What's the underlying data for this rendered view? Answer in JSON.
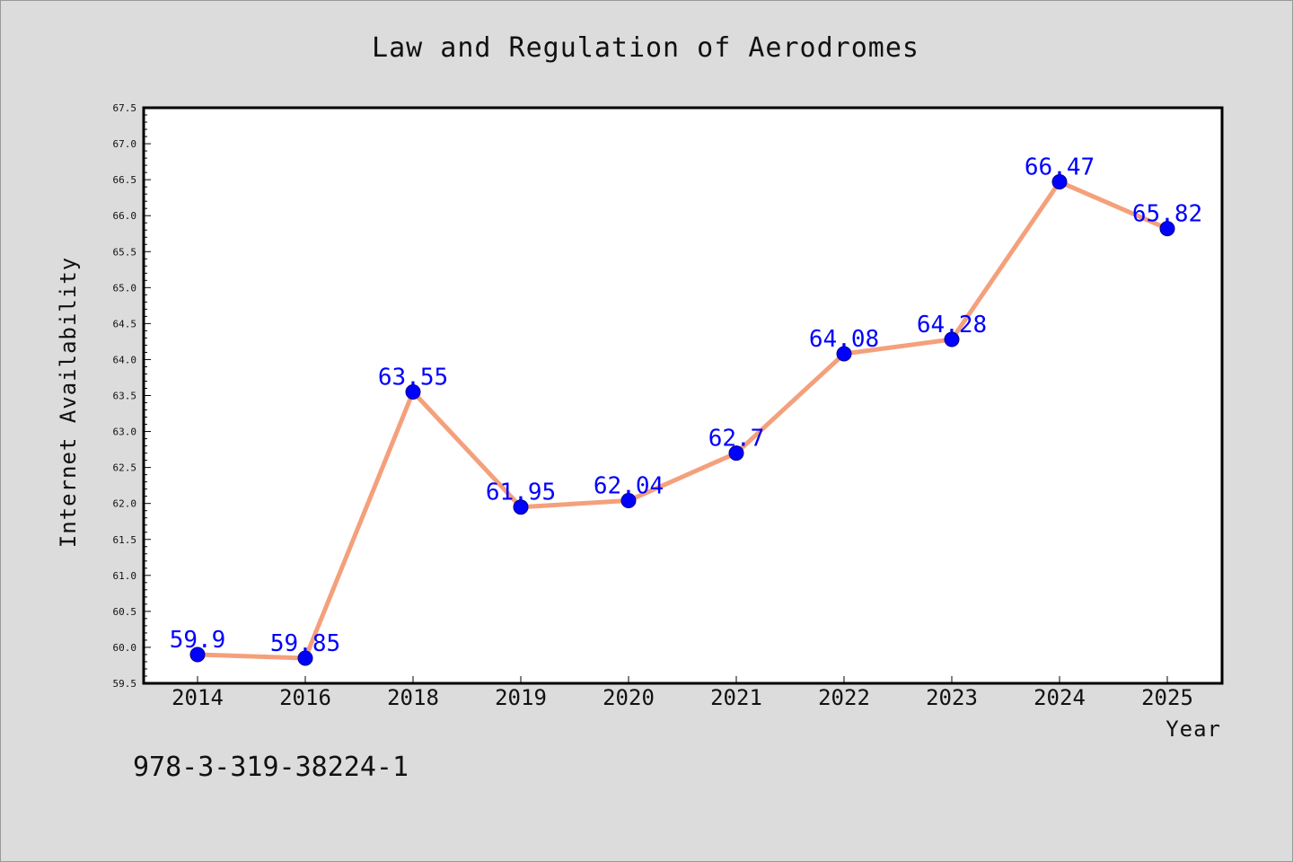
{
  "chart_data": {
    "type": "line",
    "title": "Law and Regulation of Aerodromes",
    "xlabel": "Year",
    "ylabel": "Internet Availability",
    "categories": [
      "2014",
      "2016",
      "2018",
      "2019",
      "2020",
      "2021",
      "2022",
      "2023",
      "2024",
      "2025"
    ],
    "series": [
      {
        "values": [
          59.9,
          59.85,
          63.55,
          61.95,
          62.04,
          62.7,
          64.08,
          64.28,
          66.47,
          65.82
        ],
        "data_labels": [
          "59.9",
          "59.85",
          "63.55",
          "61.95",
          "62.04",
          "62.7",
          "64.08",
          "64.28",
          "66.47",
          "65.82"
        ],
        "line_color": "#f4a07c",
        "marker_color": "#0000ff",
        "label_color": "#0000ff"
      }
    ],
    "ylim": [
      59.5,
      67.5
    ],
    "yticks": [
      "59.5",
      "60.0",
      "60.5",
      "61.0",
      "61.5",
      "62.0",
      "62.5",
      "63.0",
      "63.5",
      "64.0",
      "64.5",
      "65.0",
      "65.5",
      "66.0",
      "66.5",
      "67.0",
      "67.5"
    ],
    "grid": false,
    "legend": "none"
  },
  "footer": {
    "isbn": "978-3-319-38224-1"
  },
  "colors": {
    "background": "#dcdcdc",
    "plot_background": "#ffffff"
  }
}
